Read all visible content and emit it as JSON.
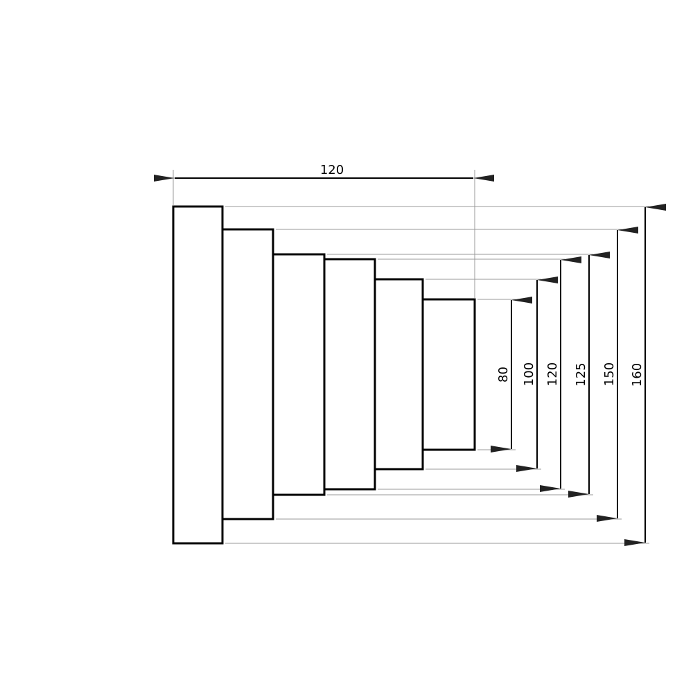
{
  "drawing": {
    "line_color": "#000000",
    "extension_line_color": "#999999",
    "horizontal_dimension": {
      "label": "120"
    },
    "vertical_dimensions": [
      {
        "label": "80"
      },
      {
        "label": "100"
      },
      {
        "label": "120"
      },
      {
        "label": "125"
      },
      {
        "label": "150"
      },
      {
        "label": "160"
      }
    ]
  }
}
